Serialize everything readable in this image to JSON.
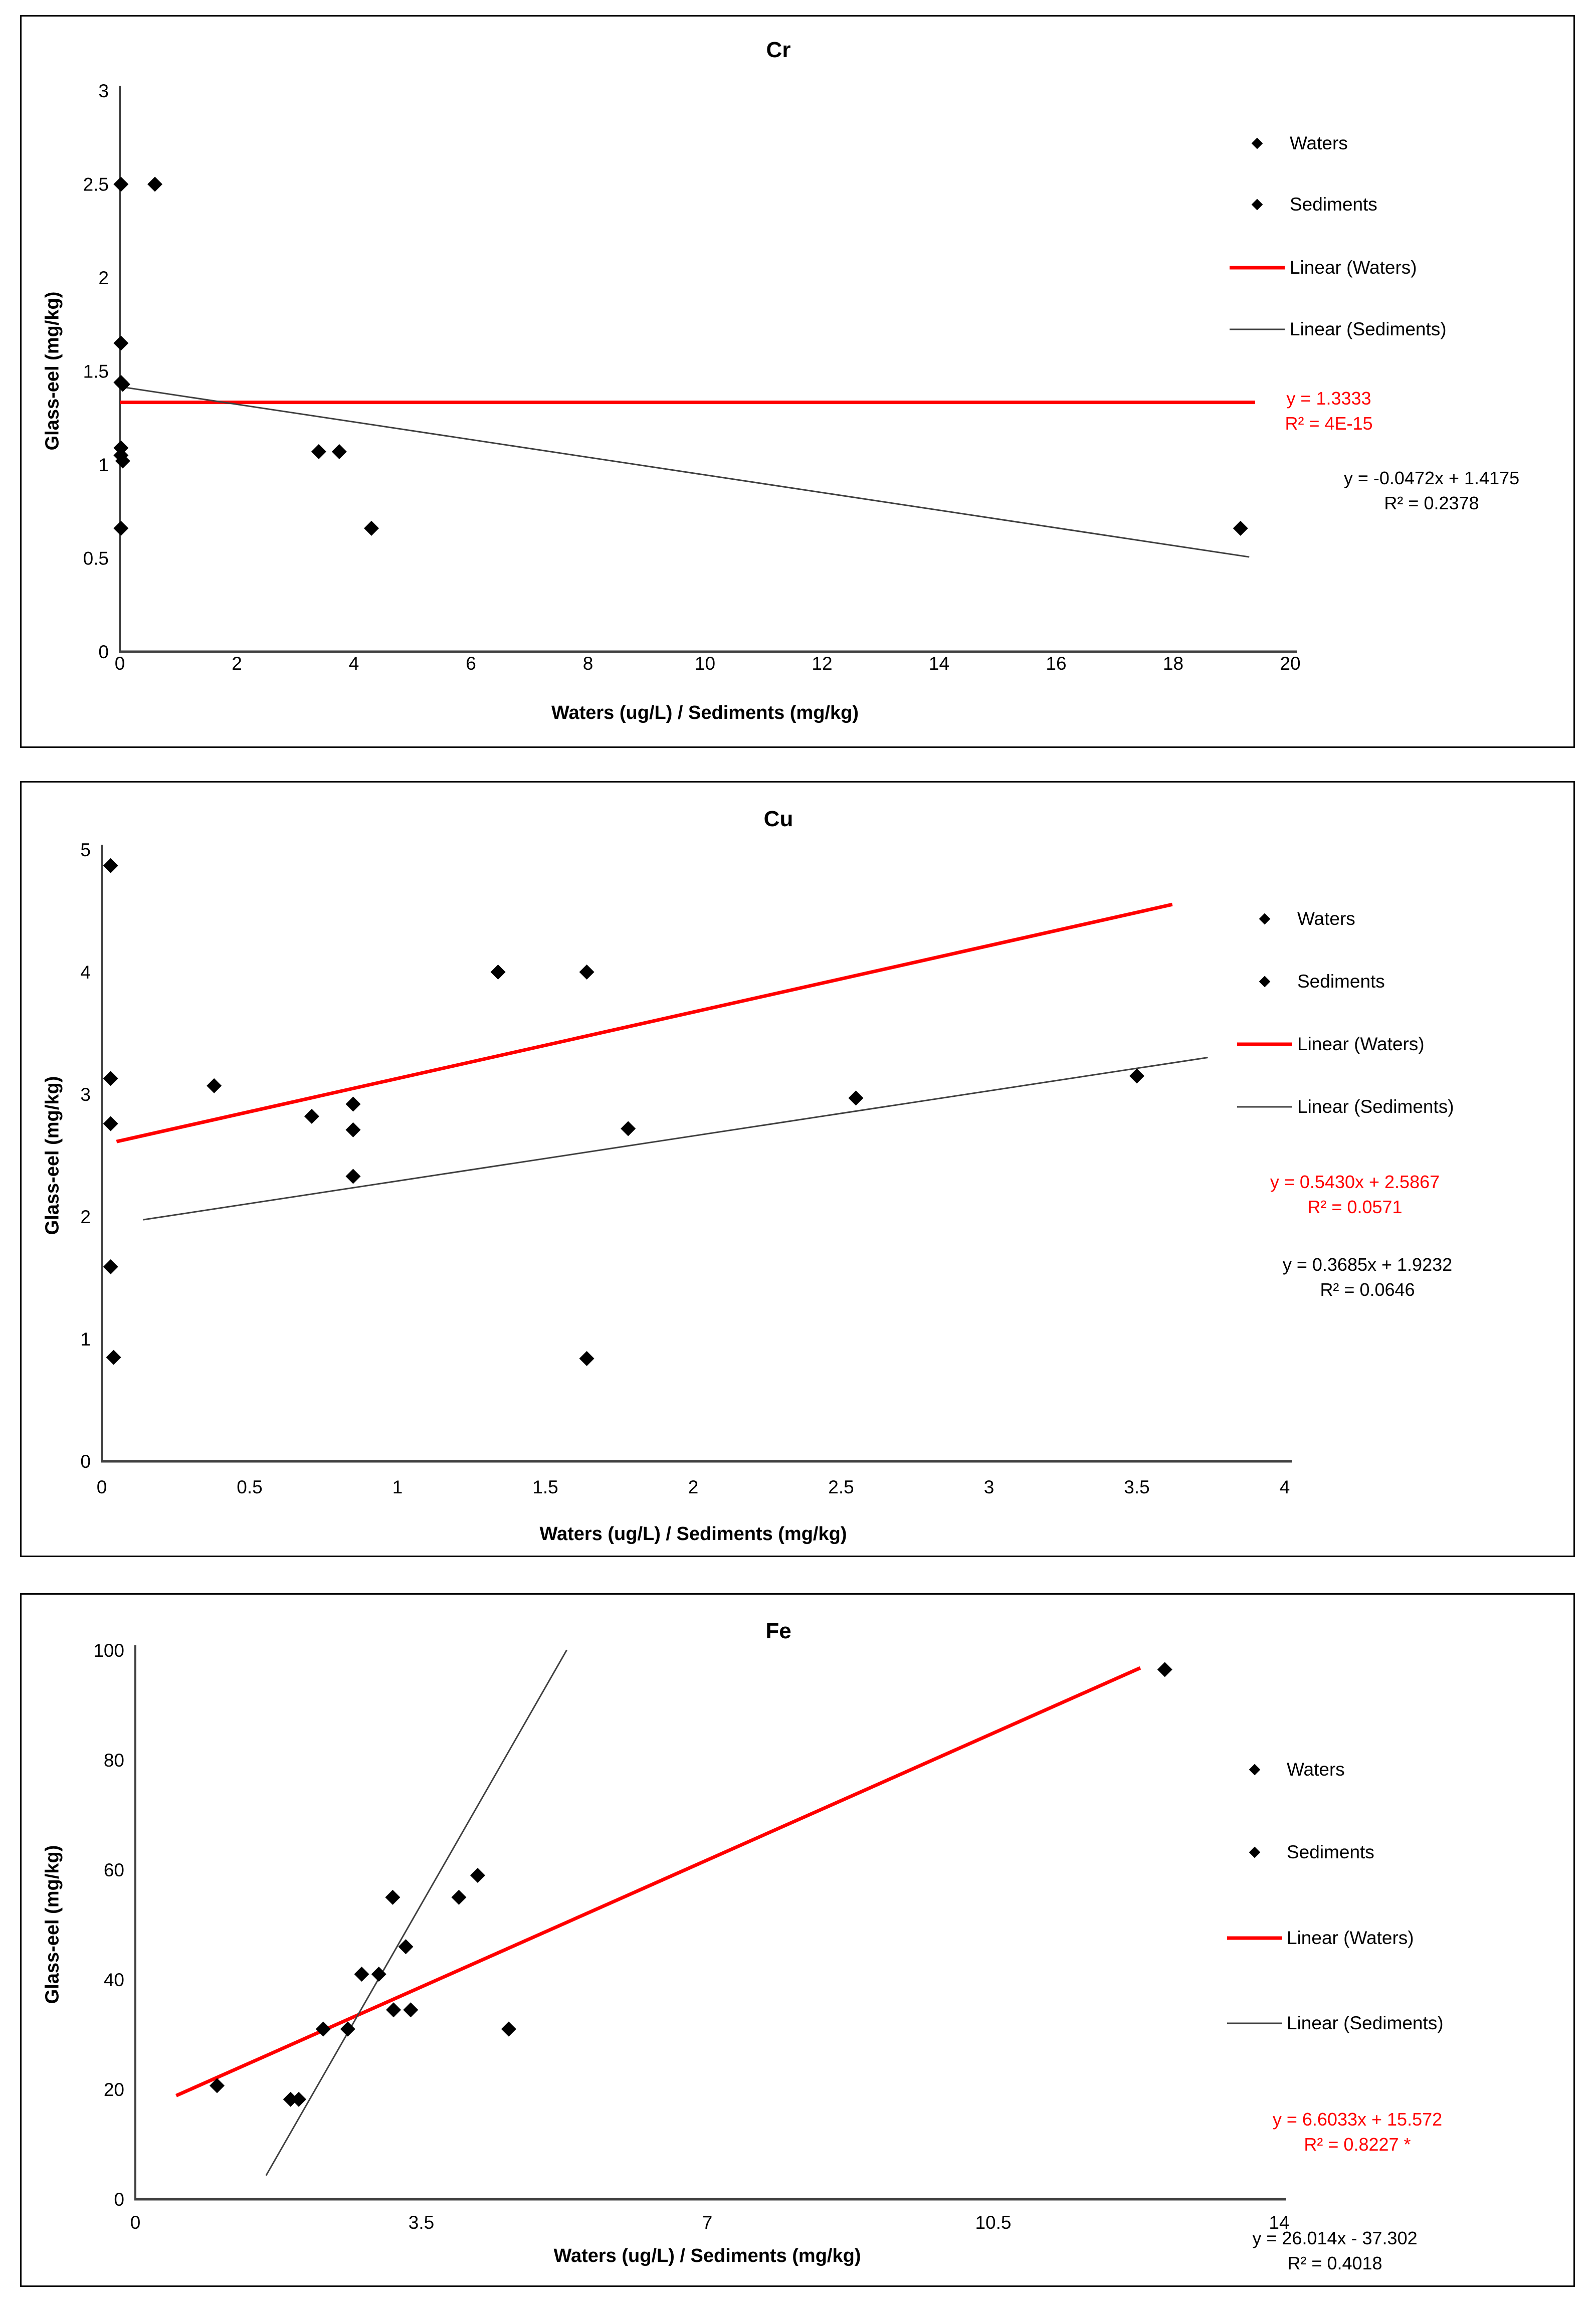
{
  "colors": {
    "waters_trend": "#FF0000",
    "sediments_trend": "#404040",
    "point": "#000000",
    "axis": "#404040",
    "background": "#FFFFFF"
  },
  "chart_data": [
    {
      "type": "scatter",
      "title": "Cr",
      "xlabel": "Waters (ug/L) / Sediments (mg/kg)",
      "ylabel": "Glass-eel (mg/kg)",
      "xlim": [
        0,
        20
      ],
      "ylim": [
        0,
        3
      ],
      "xticks": [
        0,
        2,
        4,
        6,
        8,
        10,
        12,
        14,
        16,
        18,
        20
      ],
      "yticks": [
        0,
        0.5,
        1,
        1.5,
        2,
        2.5,
        3
      ],
      "grid": false,
      "legend_position": "right",
      "legend": [
        "Waters",
        "Sediments",
        "Linear (Waters)",
        "Linear (Sediments)"
      ],
      "series": [
        {
          "name": "Waters",
          "points": [
            [
              0.02,
              2.5
            ],
            [
              0.02,
              1.65
            ],
            [
              0.02,
              1.44
            ],
            [
              0.05,
              1.43
            ],
            [
              0.02,
              1.09
            ],
            [
              0.02,
              1.05
            ],
            [
              0.05,
              1.02
            ],
            [
              0.02,
              0.66
            ]
          ]
        },
        {
          "name": "Sediments",
          "points": [
            [
              0.6,
              2.5
            ],
            [
              3.4,
              1.07
            ],
            [
              3.75,
              1.07
            ],
            [
              4.3,
              0.66
            ],
            [
              19.15,
              0.66
            ]
          ]
        }
      ],
      "trendlines": [
        {
          "name": "Linear (Waters)",
          "color": "#FF0000",
          "slope": 0,
          "intercept": 1.3333,
          "x_range": [
            0,
            19.4
          ],
          "equation": "y = 1.3333",
          "r2": "R² = 4E-15"
        },
        {
          "name": "Linear (Sediments)",
          "color": "#404040",
          "slope": -0.0472,
          "intercept": 1.4175,
          "x_range": [
            0,
            19.3
          ],
          "equation": "y = -0.0472x + 1.4175",
          "r2": "R² = 0.2378"
        }
      ]
    },
    {
      "type": "scatter",
      "title": "Cu",
      "xlabel": "Waters (ug/L) / Sediments (mg/kg)",
      "ylabel": "Glass-eel (mg/kg)",
      "xlim": [
        0,
        4
      ],
      "ylim": [
        0,
        5
      ],
      "xticks": [
        0,
        0.5,
        1,
        1.5,
        2,
        2.5,
        3,
        3.5,
        4
      ],
      "yticks": [
        0,
        1,
        2,
        3,
        4,
        5
      ],
      "grid": false,
      "legend_position": "right",
      "legend": [
        "Waters",
        "Sediments",
        "Linear (Waters)",
        "Linear (Sediments)"
      ],
      "series": [
        {
          "name": "Waters",
          "points": [
            [
              0.03,
              4.87
            ],
            [
              0.03,
              3.13
            ],
            [
              0.03,
              2.76
            ],
            [
              0.03,
              1.59
            ],
            [
              0.04,
              0.85
            ]
          ]
        },
        {
          "name": "Sediments",
          "points": [
            [
              0.38,
              3.07
            ],
            [
              0.71,
              2.82
            ],
            [
              0.85,
              2.92
            ],
            [
              0.85,
              2.71
            ],
            [
              0.85,
              2.33
            ],
            [
              1.34,
              4.0
            ],
            [
              1.64,
              4.0
            ],
            [
              1.64,
              0.84
            ],
            [
              1.78,
              2.72
            ],
            [
              2.55,
              2.97
            ],
            [
              3.5,
              3.15
            ]
          ]
        }
      ],
      "trendlines": [
        {
          "name": "Linear (Waters)",
          "color": "#FF0000",
          "slope": 0.543,
          "intercept": 2.5867,
          "x_range": [
            0.05,
            3.62
          ],
          "equation": "y = 0.5430x + 2.5867",
          "r2": "R² = 0.0571"
        },
        {
          "name": "Linear (Sediments)",
          "color": "#404040",
          "slope": 0.3685,
          "intercept": 1.9232,
          "x_range": [
            0.14,
            3.74
          ],
          "equation": "y = 0.3685x + 1.9232",
          "r2": "R² = 0.0646"
        }
      ]
    },
    {
      "type": "scatter",
      "title": "Fe",
      "xlabel": "Waters (ug/L) / Sediments (mg/kg)",
      "ylabel": "Glass-eel (mg/kg)",
      "xlim": [
        0,
        14
      ],
      "ylim": [
        0,
        100
      ],
      "xticks": [
        0,
        3.5,
        7,
        10.5,
        14
      ],
      "yticks": [
        0,
        20,
        40,
        60,
        80,
        100
      ],
      "grid": false,
      "legend_position": "right",
      "legend": [
        "Waters",
        "Sediments",
        "Linear (Waters)",
        "Linear (Sediments)"
      ],
      "series": [
        {
          "name": "Waters",
          "points": [
            [
              1.0,
              20.7
            ],
            [
              1.9,
              18.2
            ],
            [
              2.0,
              18.2
            ],
            [
              2.3,
              31
            ],
            [
              3.16,
              34.5
            ],
            [
              12.6,
              96.5
            ]
          ]
        },
        {
          "name": "Sediments",
          "points": [
            [
              2.6,
              31
            ],
            [
              2.77,
              41
            ],
            [
              2.98,
              41
            ],
            [
              3.15,
              55
            ],
            [
              3.31,
              46
            ],
            [
              3.37,
              34.5
            ],
            [
              3.96,
              55
            ],
            [
              4.19,
              59
            ],
            [
              4.57,
              31
            ]
          ]
        }
      ],
      "trendlines": [
        {
          "name": "Linear (Waters)",
          "color": "#FF0000",
          "slope": 6.6033,
          "intercept": 15.572,
          "x_range": [
            0.5,
            12.3
          ],
          "equation": "y = 6.6033x + 15.572",
          "r2": "R² = 0.8227 *"
        },
        {
          "name": "Linear (Sediments)",
          "color": "#404040",
          "slope": 26.014,
          "intercept": -37.302,
          "x_range": [
            1.6,
            5.28
          ],
          "equation": "y = 26.014x - 37.302",
          "r2": "R² = 0.4018"
        }
      ]
    }
  ]
}
